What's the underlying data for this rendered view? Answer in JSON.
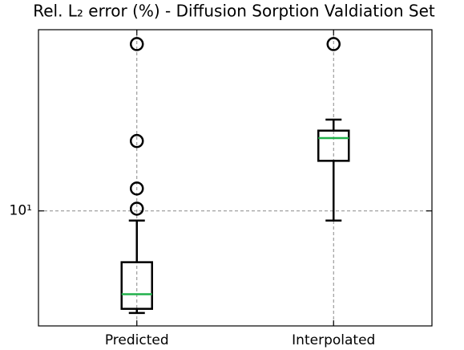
{
  "chart_data": {
    "type": "box",
    "title": "Rel. L₂ error (%) - Diffusion Sorption Valdiation Set",
    "categories": [
      "Predicted",
      "Interpolated"
    ],
    "boxes": [
      {
        "whislo": 4.04,
        "q1": 4.19,
        "med": 4.77,
        "q3": 6.34,
        "whishi": 9.18,
        "fliers": [
          10.2,
          12.2,
          18.6,
          44
        ]
      },
      {
        "whislo": 9.18,
        "q1": 15.6,
        "med": 19.1,
        "q3": 20.4,
        "whishi": 22.5,
        "fliers": [
          44
        ]
      }
    ],
    "box_color": "#000000",
    "median_color": "#22b14c",
    "ylim": [
      3.6,
      50
    ],
    "yscale": "log",
    "yticks": [
      {
        "value": 10,
        "label": "10¹"
      }
    ],
    "grid": true
  }
}
